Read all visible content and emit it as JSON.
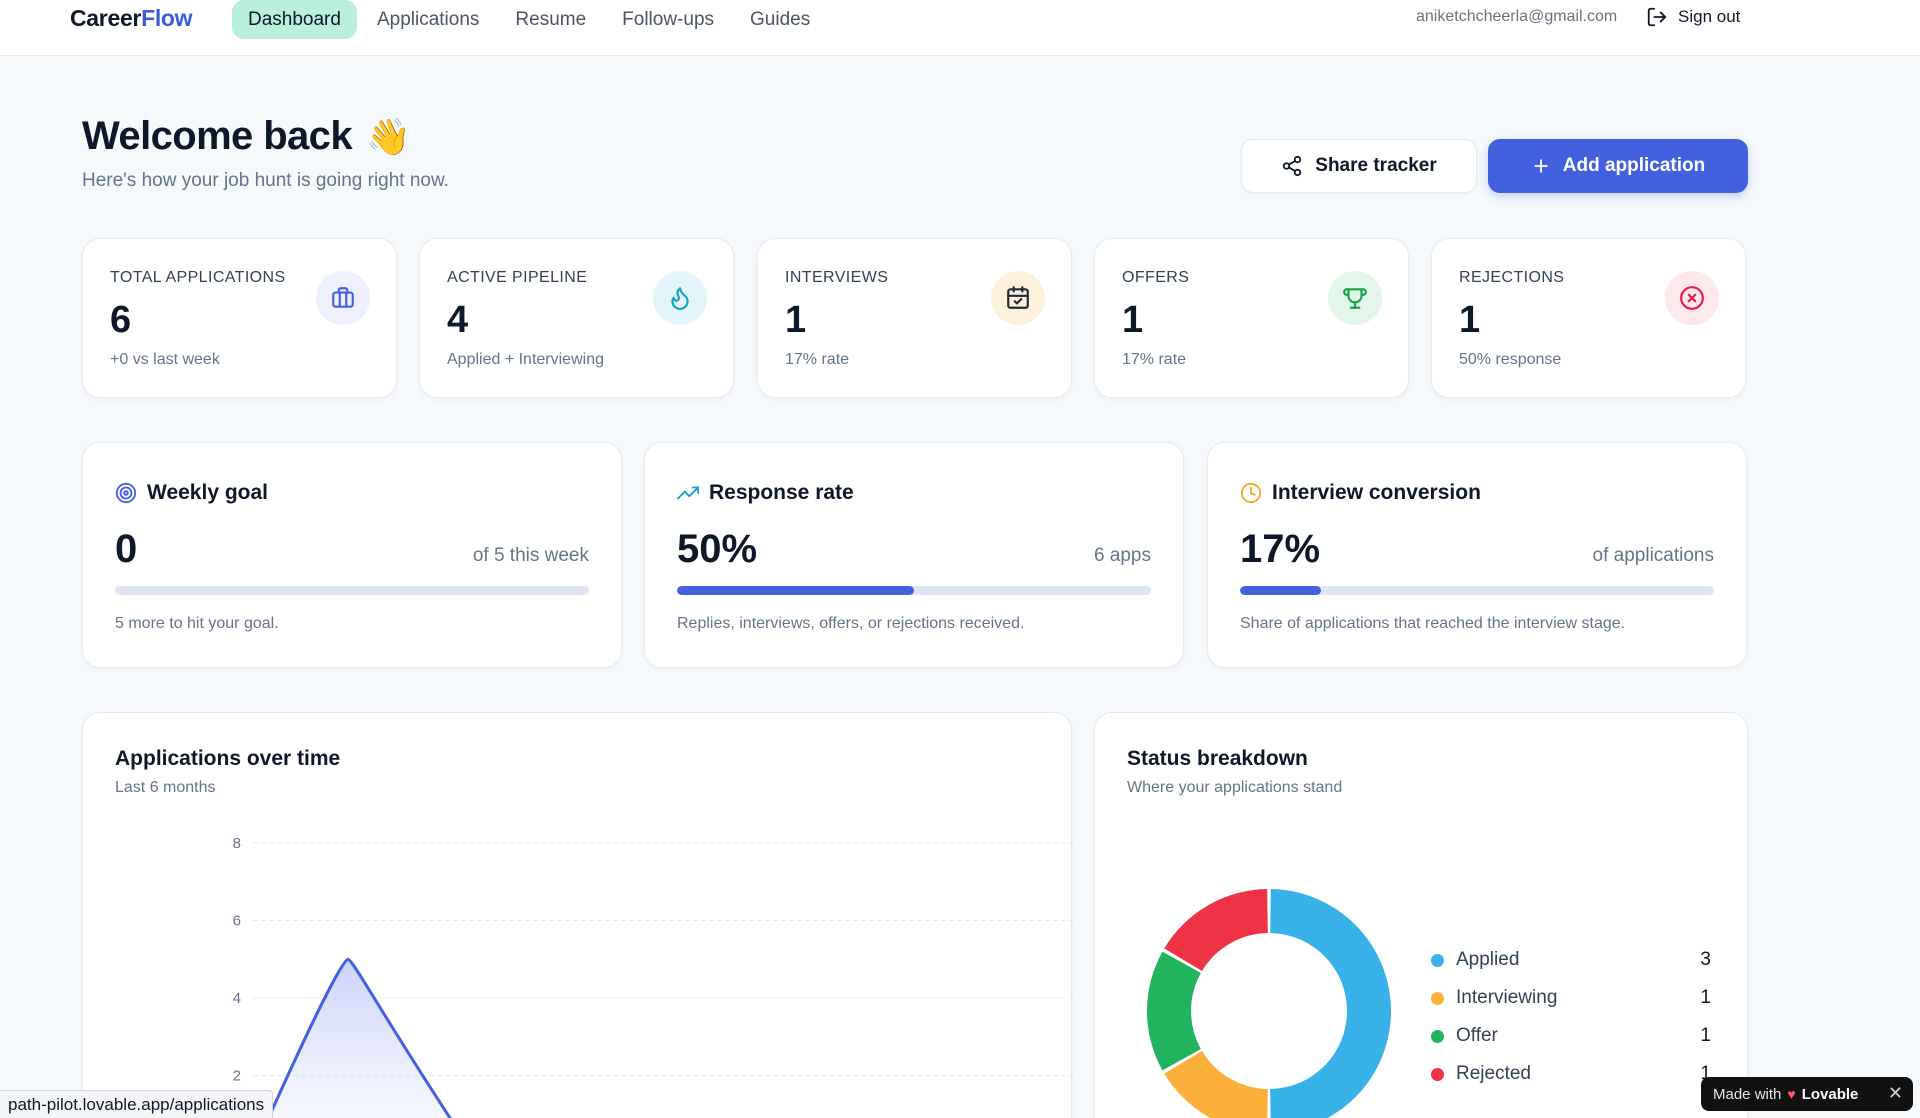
{
  "logo": {
    "part1": "Career",
    "part2": "Flow"
  },
  "nav": {
    "items": [
      {
        "label": "Dashboard",
        "active": true
      },
      {
        "label": "Applications"
      },
      {
        "label": "Resume"
      },
      {
        "label": "Follow-ups"
      },
      {
        "label": "Guides"
      }
    ],
    "email": "aniketchcheerla@gmail.com",
    "signout": "Sign out"
  },
  "header": {
    "title": "Welcome back",
    "emoji": "👋",
    "subtitle": "Here's how your job hunt is going right now.",
    "share_label": "Share tracker",
    "add_label": "Add application"
  },
  "stats": [
    {
      "label": "TOTAL APPLICATIONS",
      "value": "6",
      "sub": "+0 vs last week",
      "icon": "briefcase-icon",
      "color": "#4361de",
      "bg": "#eef1fd"
    },
    {
      "label": "ACTIVE PIPELINE",
      "value": "4",
      "sub": "Applied + Interviewing",
      "icon": "flame-icon",
      "color": "#0ea5c6",
      "bg": "#e3f5fa"
    },
    {
      "label": "INTERVIEWS",
      "value": "1",
      "sub": "17% rate",
      "icon": "calendar-check-icon",
      "color": "#1f2937",
      "bg": "#fdf1dc"
    },
    {
      "label": "OFFERS",
      "value": "1",
      "sub": "17% rate",
      "icon": "trophy-icon",
      "color": "#16a34a",
      "bg": "#e3f6ea"
    },
    {
      "label": "REJECTIONS",
      "value": "1",
      "sub": "50% response",
      "icon": "x-circle-icon",
      "color": "#e11d48",
      "bg": "#fde8ec"
    }
  ],
  "metrics": [
    {
      "title": "Weekly goal",
      "value": "0",
      "right": "of 5 this week",
      "progress": 0,
      "note": "5 more to hit your goal.",
      "icon": "target-icon"
    },
    {
      "title": "Response rate",
      "value": "50%",
      "right": "6 apps",
      "progress": 0.5,
      "note": "Replies, interviews, offers, or rejections received.",
      "icon": "trending-up-icon"
    },
    {
      "title": "Interview conversion",
      "value": "17%",
      "right": "of applications",
      "progress": 0.17,
      "note": "Share of applications that reached the interview stage.",
      "icon": "clock-icon"
    }
  ],
  "over_time": {
    "title": "Applications over time",
    "subtitle": "Last 6 months"
  },
  "status_breakdown": {
    "title": "Status breakdown",
    "subtitle": "Where your applications stand"
  },
  "chart_data": [
    {
      "type": "area",
      "title": "Applications over time",
      "subtitle": "Last 6 months",
      "ylim": [
        0,
        8
      ],
      "yticks": [
        "8",
        "6",
        "4",
        "2"
      ],
      "grid": true,
      "note": "Only the upper part of the chart is visible; the curve peaks near 5."
    },
    {
      "type": "pie",
      "donut": true,
      "title": "Status breakdown",
      "labels": [
        "Applied",
        "Interviewing",
        "Offer",
        "Rejected"
      ],
      "values": [
        3,
        1,
        1,
        1
      ],
      "colors": [
        "#38b2e8",
        "#fbb03b",
        "#22b35e",
        "#ee3346"
      ],
      "value_labels": [
        "3",
        "1",
        "1",
        "1"
      ],
      "legend": "right"
    }
  ],
  "overlays": {
    "status_url": "path-pilot.lovable.app/applications",
    "lovable_prefix": "Made with",
    "lovable_brand": "Lovable",
    "lovable_close": "✕"
  }
}
